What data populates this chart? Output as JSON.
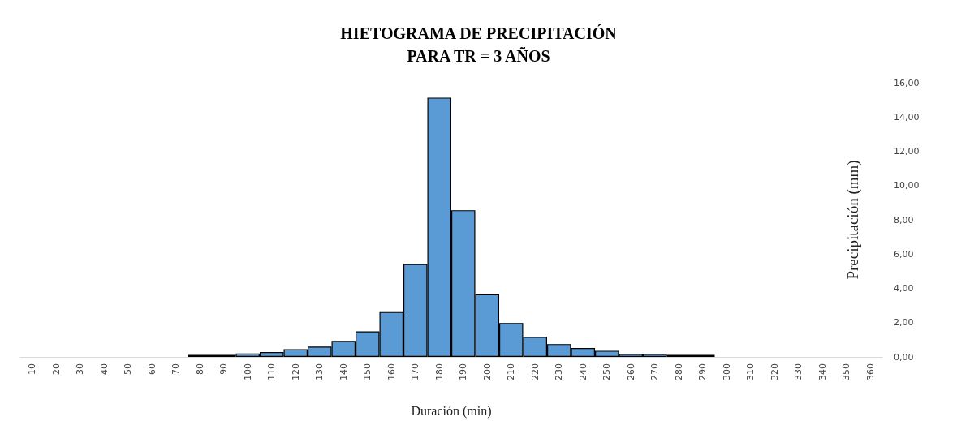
{
  "chart_data": {
    "type": "bar",
    "title": "HIETOGRAMA DE PRECIPITACIÓN\nPARA TR = 3 AÑOS",
    "xlabel": "Duración (min)",
    "ylabel": "Precipitación (mm)",
    "categories": [
      "10",
      "20",
      "30",
      "40",
      "50",
      "60",
      "70",
      "80",
      "90",
      "100",
      "110",
      "120",
      "130",
      "140",
      "150",
      "160",
      "170",
      "180",
      "190",
      "200",
      "210",
      "220",
      "230",
      "240",
      "250",
      "260",
      "270",
      "280",
      "290",
      "300",
      "310",
      "320",
      "330",
      "340",
      "350",
      "360"
    ],
    "values": [
      0,
      0,
      0,
      0,
      0,
      0,
      0,
      0.12,
      0.12,
      0.2,
      0.28,
      0.45,
      0.6,
      0.93,
      1.49,
      2.62,
      5.42,
      15.13,
      8.56,
      3.66,
      1.98,
      1.17,
      0.75,
      0.52,
      0.36,
      0.18,
      0.18,
      0.12,
      0.12,
      0,
      0,
      0,
      0,
      0,
      0,
      null
    ],
    "color": "#5b9bd5",
    "ylim": [
      0,
      16
    ],
    "yticks": [
      {
        "value": 0,
        "label": "0,00"
      },
      {
        "value": 2,
        "label": "2,00"
      },
      {
        "value": 4,
        "label": "4,00"
      },
      {
        "value": 6,
        "label": "6,00"
      },
      {
        "value": 8,
        "label": "8,00"
      },
      {
        "value": 10,
        "label": "10,00"
      },
      {
        "value": 12,
        "label": "12,00"
      },
      {
        "value": 14,
        "label": "14,00"
      },
      {
        "value": 16,
        "label": "16,00"
      }
    ],
    "grid": false
  }
}
